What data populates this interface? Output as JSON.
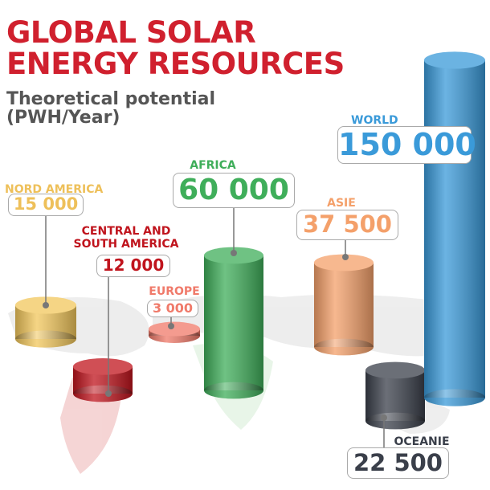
{
  "chart_data": {
    "type": "bar",
    "title": "GLOBAL SOLAR ENERGY RESOURCES",
    "subtitle": "Theoretical potential (PWH/Year)",
    "categories": [
      "NORD AMERICA",
      "CENTRAL AND SOUTH AMERICA",
      "EUROPE",
      "AFRICA",
      "ASIE",
      "OCEANIE",
      "WORLD"
    ],
    "values": [
      15000,
      12000,
      3000,
      60000,
      37500,
      22500,
      150000
    ],
    "value_labels": [
      "15 000",
      "12 000",
      "3 000",
      "60 000",
      "37 500",
      "22 500",
      "150 000"
    ],
    "colors": [
      "#f2c75c",
      "#c0141d",
      "#f07a6a",
      "#3fae5a",
      "#f4a06a",
      "#3a3f4a",
      "#3a9ad9"
    ]
  }
}
